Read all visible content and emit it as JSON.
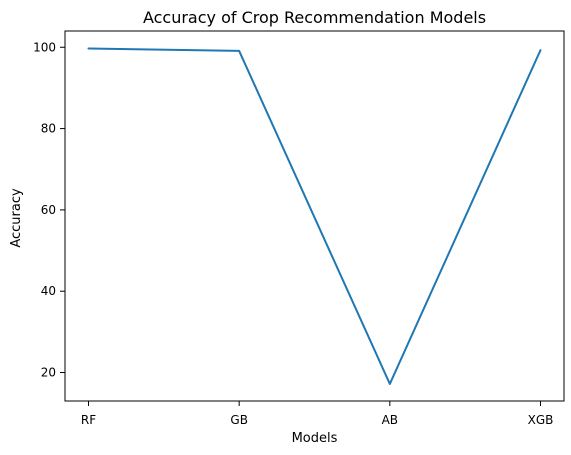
{
  "chart_data": {
    "type": "line",
    "title": "Accuracy of Crop Recommendation Models",
    "xlabel": "Models",
    "ylabel": "Accuracy",
    "categories": [
      "RF",
      "GB",
      "AB",
      "XGB"
    ],
    "series": [
      {
        "values": [
          99.7,
          99.1,
          17.2,
          99.3
        ],
        "color": "#1f77b4"
      }
    ],
    "y_ticks": [
      20,
      40,
      60,
      80,
      100
    ],
    "ylim": [
      13.0,
      104.0
    ],
    "grid": false,
    "legend": "none"
  }
}
